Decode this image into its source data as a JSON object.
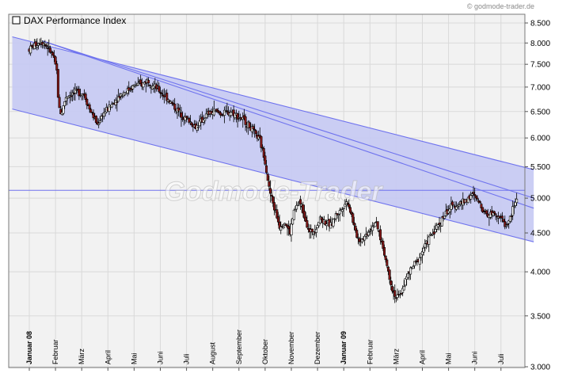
{
  "header": {
    "credit": "© godmode-trader.de"
  },
  "watermark": {
    "text": "Godmode-Trader"
  },
  "chart_data": {
    "type": "candlestick",
    "title": "DAX Performance Index",
    "yscale": "log",
    "ylim": [
      3000,
      8750
    ],
    "y_ticks": [
      8500,
      8000,
      7500,
      7000,
      6500,
      6000,
      5500,
      5000,
      4500,
      4000,
      3500,
      3000
    ],
    "y_tick_labels": [
      "8.500",
      "8.000",
      "7.500",
      "7.000",
      "6.500",
      "6.000",
      "5.500",
      "5.000",
      "4.500",
      "4.000",
      "3.500",
      "3.000"
    ],
    "x_labels": [
      {
        "label": "Januar 08",
        "bold": true
      },
      {
        "label": "Februar",
        "bold": false
      },
      {
        "label": "März",
        "bold": false
      },
      {
        "label": "April",
        "bold": false
      },
      {
        "label": "Mai",
        "bold": false
      },
      {
        "label": "Juni",
        "bold": false
      },
      {
        "label": "Juli",
        "bold": false
      },
      {
        "label": "August",
        "bold": false
      },
      {
        "label": "September",
        "bold": false
      },
      {
        "label": "Oktober",
        "bold": false
      },
      {
        "label": "November",
        "bold": false
      },
      {
        "label": "Dezember",
        "bold": false
      },
      {
        "label": "Januar 09",
        "bold": true
      },
      {
        "label": "Februar",
        "bold": false
      },
      {
        "label": "März",
        "bold": false
      },
      {
        "label": "April",
        "bold": false
      },
      {
        "label": "Mai",
        "bold": false
      },
      {
        "label": "Juni",
        "bold": false
      },
      {
        "label": "Juli",
        "bold": false
      }
    ],
    "grid": true,
    "legend": "top-left",
    "colors": {
      "plot_background": "#f2f2f2",
      "channel_fill": "#c5c9f3",
      "channel_line": "#6f73ee",
      "candle_up": "#ffffff",
      "candle_down": "#8b1a1a",
      "wick": "#000000"
    },
    "price_path": [
      [
        0.0,
        7850
      ],
      [
        0.2,
        7950
      ],
      [
        0.45,
        8050
      ],
      [
        0.7,
        7900
      ],
      [
        0.9,
        7700
      ],
      [
        1.05,
        7350
      ],
      [
        1.12,
        6600
      ],
      [
        1.22,
        6450
      ],
      [
        1.4,
        6800
      ],
      [
        1.6,
        6850
      ],
      [
        1.85,
        6900
      ],
      [
        2.1,
        6850
      ],
      [
        2.3,
        6550
      ],
      [
        2.45,
        6400
      ],
      [
        2.6,
        6250
      ],
      [
        2.8,
        6450
      ],
      [
        3.0,
        6550
      ],
      [
        3.25,
        6700
      ],
      [
        3.5,
        6850
      ],
      [
        3.8,
        6950
      ],
      [
        4.05,
        7050
      ],
      [
        4.3,
        7050
      ],
      [
        4.5,
        7150
      ],
      [
        4.7,
        7050
      ],
      [
        5.0,
        6900
      ],
      [
        5.3,
        6750
      ],
      [
        5.6,
        6550
      ],
      [
        5.9,
        6400
      ],
      [
        6.15,
        6300
      ],
      [
        6.35,
        6200
      ],
      [
        6.55,
        6300
      ],
      [
        6.8,
        6450
      ],
      [
        7.1,
        6500
      ],
      [
        7.4,
        6450
      ],
      [
        7.7,
        6500
      ],
      [
        8.0,
        6400
      ],
      [
        8.25,
        6300
      ],
      [
        8.5,
        6150
      ],
      [
        8.8,
        5950
      ],
      [
        9.0,
        5600
      ],
      [
        9.15,
        5150
      ],
      [
        9.35,
        4850
      ],
      [
        9.55,
        4600
      ],
      [
        9.75,
        4650
      ],
      [
        9.95,
        4500
      ],
      [
        10.1,
        4800
      ],
      [
        10.3,
        4950
      ],
      [
        10.5,
        4750
      ],
      [
        10.7,
        4500
      ],
      [
        10.9,
        4550
      ],
      [
        11.1,
        4700
      ],
      [
        11.3,
        4650
      ],
      [
        11.5,
        4600
      ],
      [
        11.7,
        4750
      ],
      [
        11.85,
        4800
      ],
      [
        12.0,
        4900
      ],
      [
        12.15,
        4950
      ],
      [
        12.3,
        4750
      ],
      [
        12.45,
        4500
      ],
      [
        12.6,
        4400
      ],
      [
        12.8,
        4450
      ],
      [
        13.0,
        4550
      ],
      [
        13.2,
        4650
      ],
      [
        13.35,
        4500
      ],
      [
        13.5,
        4300
      ],
      [
        13.7,
        4000
      ],
      [
        13.85,
        3800
      ],
      [
        14.0,
        3700
      ],
      [
        14.15,
        3720
      ],
      [
        14.35,
        3900
      ],
      [
        14.6,
        4050
      ],
      [
        14.85,
        4150
      ],
      [
        15.05,
        4300
      ],
      [
        15.3,
        4450
      ],
      [
        15.6,
        4600
      ],
      [
        15.85,
        4750
      ],
      [
        16.05,
        4850
      ],
      [
        16.3,
        4900
      ],
      [
        16.6,
        4950
      ],
      [
        16.9,
        5050
      ],
      [
        17.05,
        5000
      ],
      [
        17.3,
        4850
      ],
      [
        17.5,
        4750
      ],
      [
        17.75,
        4800
      ],
      [
        18.0,
        4700
      ],
      [
        18.2,
        4600
      ],
      [
        18.35,
        4700
      ],
      [
        18.5,
        4900
      ],
      [
        18.6,
        4980
      ]
    ],
    "channel": {
      "upper": [
        [
          -0.65,
          8150
        ],
        [
          19.25,
          5450
        ]
      ],
      "lower": [
        [
          -0.65,
          6550
        ],
        [
          19.25,
          4380
        ]
      ],
      "mid_line": [
        [
          0.5,
          8050
        ],
        [
          19.25,
          4850
        ]
      ],
      "resistance_line": [
        [
          0.5,
          8050
        ],
        [
          19.25,
          5000
        ]
      ],
      "horizontal_level": 5120
    }
  }
}
